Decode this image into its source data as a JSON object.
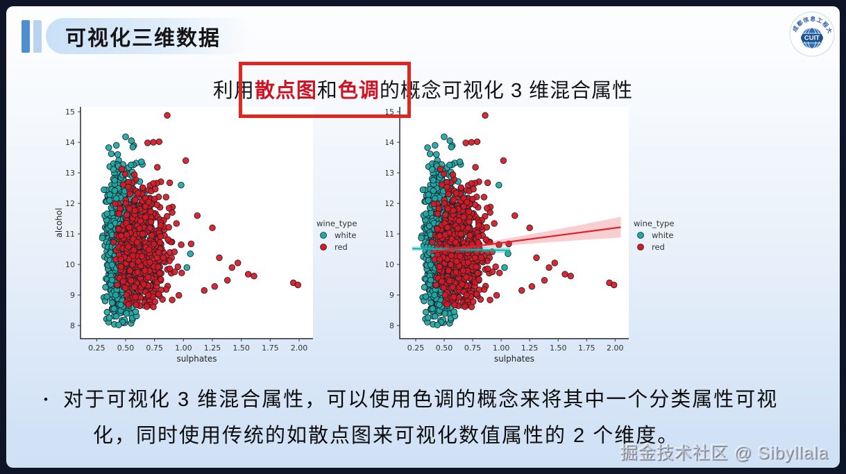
{
  "slide": {
    "title": "可视化三维数据",
    "logo": {
      "abbr": "CUIT",
      "ring_text": "成都信息工程大学"
    },
    "subtitle": {
      "seg_plain1": "利用",
      "seg_red1": "散点图",
      "seg_plain2": "和",
      "seg_red2": "色调",
      "seg_plain3": "的概念可视化 3 维混合属性"
    },
    "bullet": {
      "marker": "•",
      "line1": "对于可视化 3 维混合属性，可以使用色调的概念来将其中一个分类属性可视",
      "line2": "化，同时使用传统的如散点图来可视化数值属性的 2 个维度。"
    },
    "watermark": "掘金技术社区 @ Sibyllala"
  },
  "colors": {
    "highlight_red": "#e1251f",
    "title_bar_dark": "#4e8ed2",
    "title_bar_light": "#b9d4ee",
    "white_wine": "#1fa9a3",
    "red_wine": "#d91820",
    "point_edge": "#1b2430",
    "slide_border": "#0d1526"
  },
  "chart_data": [
    {
      "type": "scatter",
      "title": "",
      "xlabel": "sulphates",
      "ylabel": "alcohol",
      "xlim": [
        0.11,
        2.12
      ],
      "ylim": [
        7.57,
        15.16
      ],
      "grid": false,
      "xticks": [
        0.25,
        0.5,
        0.75,
        1.0,
        1.25,
        1.5,
        1.75,
        2.0
      ],
      "xtick_labels": [
        "0.25",
        "0.50",
        "0.75",
        "1.00",
        "1.25",
        "1.50",
        "1.75",
        "2.00"
      ],
      "yticks": [
        8,
        9,
        10,
        11,
        12,
        13,
        14,
        15
      ],
      "legend": {
        "title": "wine_type",
        "position": "right",
        "entries": [
          {
            "label": "white",
            "color": "#1fa9a3"
          },
          {
            "label": "red",
            "color": "#d91820"
          }
        ]
      },
      "series": [
        {
          "name": "white",
          "color": "#1fa9a3",
          "n": 1000,
          "cluster": {
            "x_median": 0.47,
            "x_log_sd": 0.16,
            "x_min": 0.22,
            "x_max": 1.08,
            "y_mean": 10.6,
            "y_sd": 1.18,
            "y_min": 8.0,
            "y_max": 14.2
          },
          "outliers": [
            [
              0.44,
              8.02
            ],
            [
              0.5,
              14.18
            ],
            [
              0.55,
              14.05
            ],
            [
              0.42,
              13.9
            ],
            [
              1.06,
              10.35
            ],
            [
              1.03,
              9.9
            ],
            [
              0.98,
              12.6
            ]
          ]
        },
        {
          "name": "red",
          "color": "#d91820",
          "n": 700,
          "cluster": {
            "x_median": 0.63,
            "x_log_sd": 0.17,
            "x_min": 0.37,
            "x_max": 1.36,
            "y_mean": 10.45,
            "y_sd": 0.98,
            "y_min": 8.6,
            "y_max": 14.9
          },
          "outliers": [
            [
              1.95,
              9.4
            ],
            [
              1.99,
              9.33
            ],
            [
              1.56,
              9.68
            ],
            [
              1.61,
              9.62
            ],
            [
              1.42,
              9.9
            ],
            [
              1.31,
              10.22
            ],
            [
              1.38,
              9.48
            ],
            [
              1.27,
              9.28
            ],
            [
              1.47,
              10.05
            ],
            [
              1.18,
              9.15
            ],
            [
              0.86,
              14.88
            ],
            [
              0.79,
              14.02
            ],
            [
              0.74,
              14.0
            ],
            [
              0.69,
              13.98
            ],
            [
              1.02,
              13.4
            ],
            [
              1.12,
              11.6
            ],
            [
              1.25,
              11.2
            ]
          ]
        }
      ],
      "regression_lines": []
    },
    {
      "type": "scatter",
      "title": "",
      "xlabel": "sulphates",
      "ylabel": "alcohol",
      "xlim": [
        0.11,
        2.12
      ],
      "ylim": [
        7.57,
        15.16
      ],
      "grid": false,
      "xticks": [
        0.25,
        0.5,
        0.75,
        1.0,
        1.25,
        1.5,
        1.75,
        2.0
      ],
      "xtick_labels": [
        "0.25",
        "0.50",
        "0.75",
        "1.00",
        "1.25",
        "1.50",
        "1.75",
        "2.00"
      ],
      "yticks": [
        8,
        9,
        10,
        11,
        12,
        13,
        14,
        15
      ],
      "legend": {
        "title": "wine_type",
        "position": "right",
        "entries": [
          {
            "label": "white",
            "color": "#1fa9a3"
          },
          {
            "label": "red",
            "color": "#d91820"
          }
        ]
      },
      "series": [
        {
          "name": "white",
          "color": "#1fa9a3",
          "n": 1000,
          "cluster": {
            "x_median": 0.47,
            "x_log_sd": 0.16,
            "x_min": 0.22,
            "x_max": 1.08,
            "y_mean": 10.6,
            "y_sd": 1.18,
            "y_min": 8.0,
            "y_max": 14.2
          },
          "outliers": [
            [
              0.44,
              8.02
            ],
            [
              0.5,
              14.18
            ],
            [
              0.55,
              14.05
            ],
            [
              0.42,
              13.9
            ],
            [
              1.06,
              10.35
            ],
            [
              1.03,
              9.9
            ],
            [
              0.98,
              12.6
            ]
          ]
        },
        {
          "name": "red",
          "color": "#d91820",
          "n": 700,
          "cluster": {
            "x_median": 0.63,
            "x_log_sd": 0.17,
            "x_min": 0.37,
            "x_max": 1.36,
            "y_mean": 10.45,
            "y_sd": 0.98,
            "y_min": 8.6,
            "y_max": 14.9
          },
          "outliers": [
            [
              1.95,
              9.4
            ],
            [
              1.99,
              9.33
            ],
            [
              1.56,
              9.68
            ],
            [
              1.61,
              9.62
            ],
            [
              1.42,
              9.9
            ],
            [
              1.31,
              10.22
            ],
            [
              1.38,
              9.48
            ],
            [
              1.27,
              9.28
            ],
            [
              1.47,
              10.05
            ],
            [
              1.18,
              9.15
            ],
            [
              0.86,
              14.88
            ],
            [
              0.79,
              14.02
            ],
            [
              0.74,
              14.0
            ],
            [
              0.69,
              13.98
            ],
            [
              1.02,
              13.4
            ],
            [
              1.12,
              11.6
            ],
            [
              1.25,
              11.2
            ]
          ]
        }
      ],
      "regression_lines": [
        {
          "series": "white",
          "color": "#17b3ab",
          "x_start": 0.22,
          "x_end": 1.08,
          "y_start": 10.52,
          "y_end": 10.46,
          "band_half_start": 0.07,
          "band_half_end": 0.1,
          "band_opacity": 0.35
        },
        {
          "series": "red",
          "color": "#e0222e",
          "x_start": 0.37,
          "x_end": 2.05,
          "y_start": 10.4,
          "y_end": 11.22,
          "band_half_start": 0.05,
          "band_half_end": 0.34,
          "band_opacity": 0.22
        }
      ]
    }
  ]
}
